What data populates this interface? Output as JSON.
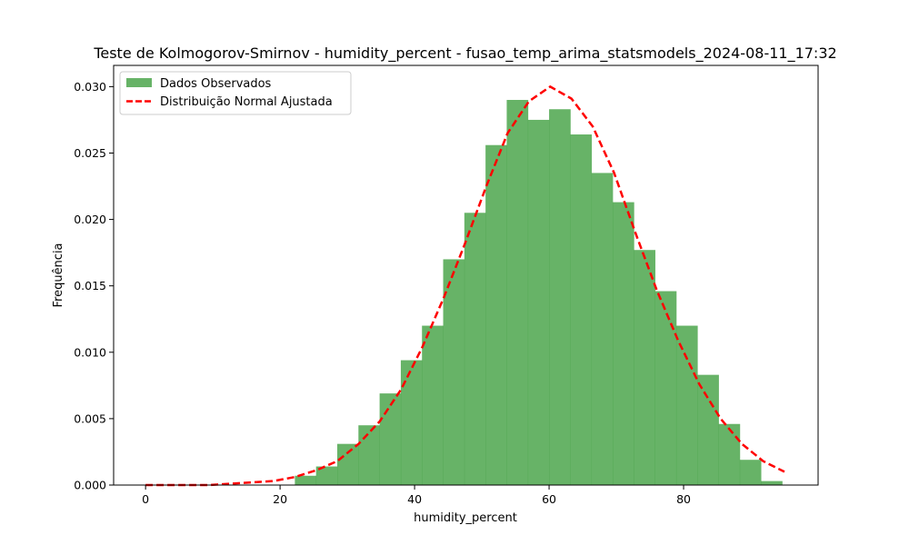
{
  "chart_data": {
    "type": "bar",
    "title": "Teste de Kolmogorov-Smirnov - humidity_percent - fusao_temp_arima_statsmodels_2024-08-11_17:32",
    "xlabel": "humidity_percent",
    "ylabel": "Frequência",
    "xlim": [
      -4.75,
      100
    ],
    "ylim": [
      0,
      0.0316
    ],
    "xticks": [
      0,
      20,
      40,
      60,
      80
    ],
    "yticks": [
      0.0,
      0.005,
      0.01,
      0.015,
      0.02,
      0.025,
      0.03
    ],
    "ytick_labels": [
      "0.000",
      "0.005",
      "0.010",
      "0.015",
      "0.020",
      "0.025",
      "0.030"
    ],
    "grid": false,
    "legend_placement": "upper-left",
    "colors": {
      "histogram": "#4ca64c",
      "normal_fit": "#ff0000"
    },
    "histogram": {
      "name": "Dados Observados",
      "bin_edges": [
        22.2,
        25.35,
        28.5,
        31.65,
        34.8,
        37.95,
        41.1,
        44.25,
        47.4,
        50.55,
        53.7,
        56.85,
        60.0,
        63.15,
        66.3,
        69.45,
        72.6,
        75.75,
        78.9,
        82.05,
        85.2,
        88.35,
        91.5,
        94.65
      ],
      "values": [
        0.0007,
        0.0014,
        0.0031,
        0.0045,
        0.0069,
        0.0094,
        0.012,
        0.017,
        0.0205,
        0.0256,
        0.029,
        0.0275,
        0.0283,
        0.0264,
        0.0235,
        0.0213,
        0.0177,
        0.0146,
        0.012,
        0.0083,
        0.0046,
        0.0019,
        0.0003
      ]
    },
    "normal_fit": {
      "name": "Distribuição Normal Ajustada",
      "x": [
        0,
        3.17,
        6.33,
        9.5,
        12.67,
        15.83,
        19.0,
        22.17,
        25.33,
        28.5,
        31.67,
        34.83,
        38.0,
        41.17,
        44.33,
        47.5,
        50.67,
        53.83,
        57.0,
        60.17,
        63.33,
        66.5,
        69.67,
        72.83,
        76.0,
        79.17,
        82.33,
        85.5,
        88.67,
        91.83,
        95.0
      ],
      "y": [
        0.0,
        0.0,
        0.0,
        0.0,
        0.0001,
        0.0002,
        0.0003,
        0.0006,
        0.0011,
        0.0018,
        0.0031,
        0.0048,
        0.0072,
        0.0104,
        0.0141,
        0.0182,
        0.0225,
        0.0265,
        0.0289,
        0.03,
        0.0291,
        0.027,
        0.0235,
        0.019,
        0.0147,
        0.0109,
        0.0076,
        0.005,
        0.0031,
        0.0018,
        0.001
      ]
    }
  }
}
